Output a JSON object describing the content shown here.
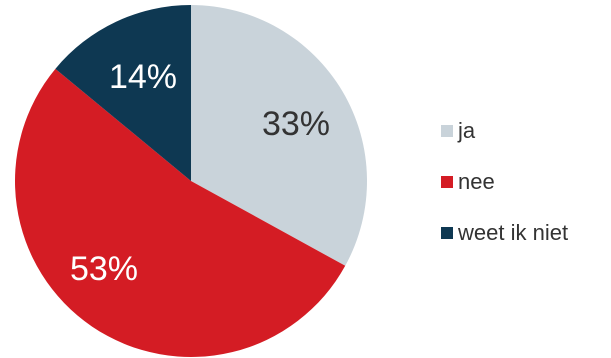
{
  "chart_data": {
    "type": "pie",
    "categories": [
      "ja",
      "nee",
      "weet ik niet"
    ],
    "values": [
      33,
      53,
      14
    ],
    "labels": [
      "33%",
      "53%",
      "14%"
    ],
    "colors": [
      "#c9d3da",
      "#d41c24",
      "#0e3852"
    ],
    "label_colors": [
      "#333333",
      "#ffffff",
      "#ffffff"
    ],
    "start_angle_deg": 0,
    "direction": "clockwise",
    "legend": {
      "placement": "right",
      "items": [
        {
          "label": "ja",
          "color": "#c9d3da"
        },
        {
          "label": "nee",
          "color": "#d41c24"
        },
        {
          "label": "weet ik niet",
          "color": "#0e3852"
        }
      ]
    }
  }
}
